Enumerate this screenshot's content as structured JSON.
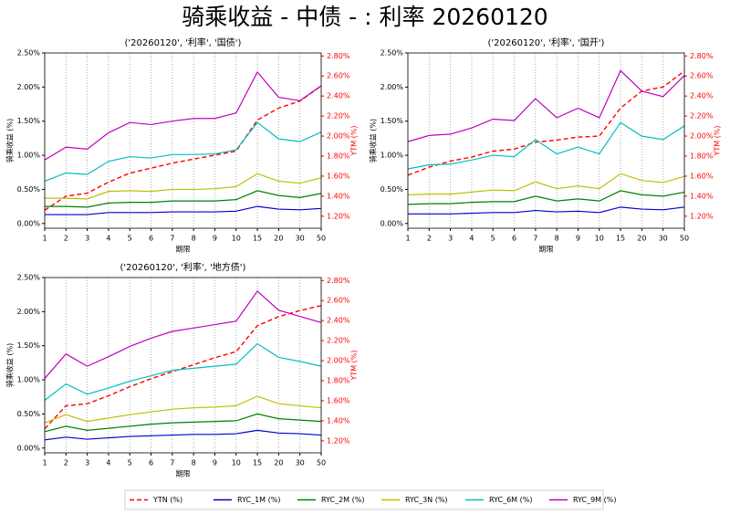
{
  "title": "骑乘收益 - 中债 - : 利率 20260120",
  "chart_data": [
    {
      "type": "line",
      "title": "('20260120', '利率', '国债')",
      "xlabel": "期限",
      "ylabel": "骑乘收益 (%)",
      "y2label": "YTM (%)",
      "categories": [
        "1",
        "2",
        "3",
        "4",
        "5",
        "6",
        "7",
        "8",
        "9",
        "10",
        "15",
        "20",
        "30",
        "50"
      ],
      "xgrid": true,
      "ylim": [
        -0.07,
        2.5
      ],
      "yticks": [
        {
          "value": 0,
          "label": "0.00%"
        },
        {
          "value": 0.5,
          "label": "0.50%"
        },
        {
          "value": 1,
          "label": "1.00%"
        },
        {
          "value": 1.5,
          "label": "1.50%"
        },
        {
          "value": 2,
          "label": "2.00%"
        },
        {
          "value": 2.5,
          "label": "2.50%"
        }
      ],
      "y2lim": [
        1.08,
        2.83
      ],
      "y2ticks": [
        {
          "value": 1.2,
          "label": "1.20%"
        },
        {
          "value": 1.4,
          "label": "1.40%"
        },
        {
          "value": 1.6,
          "label": "1.60%"
        },
        {
          "value": 1.8,
          "label": "1.80%"
        },
        {
          "value": 2,
          "label": "2.00%"
        },
        {
          "value": 2.2,
          "label": "2.20%"
        },
        {
          "value": 2.4,
          "label": "2.40%"
        },
        {
          "value": 2.6,
          "label": "2.60%"
        },
        {
          "value": 2.8,
          "label": "2.80%"
        }
      ],
      "series": [
        {
          "name": "YTN (%)",
          "color": "#ff0000",
          "dashed": true,
          "axis": "y2",
          "values": [
            1.26,
            1.4,
            1.43,
            1.54,
            1.63,
            1.68,
            1.73,
            1.77,
            1.81,
            1.85,
            2.16,
            2.28,
            2.35,
            2.5
          ]
        },
        {
          "name": "RYC_1M (%)",
          "color": "#0000cc",
          "values": [
            0.13,
            0.13,
            0.13,
            0.16,
            0.16,
            0.16,
            0.17,
            0.17,
            0.17,
            0.18,
            0.25,
            0.21,
            0.2,
            0.22
          ]
        },
        {
          "name": "RYC_2M (%)",
          "color": "#008000",
          "values": [
            0.25,
            0.25,
            0.24,
            0.3,
            0.31,
            0.31,
            0.33,
            0.33,
            0.33,
            0.35,
            0.48,
            0.41,
            0.38,
            0.44
          ]
        },
        {
          "name": "RYC_3N (%)",
          "color": "#bfbf00",
          "values": [
            0.37,
            0.37,
            0.36,
            0.47,
            0.48,
            0.47,
            0.5,
            0.5,
            0.51,
            0.54,
            0.73,
            0.62,
            0.59,
            0.67
          ]
        },
        {
          "name": "RYC_6M (%)",
          "color": "#00bfbf",
          "values": [
            0.62,
            0.74,
            0.72,
            0.91,
            0.98,
            0.96,
            1.01,
            1.01,
            1.02,
            1.08,
            1.48,
            1.24,
            1.2,
            1.34
          ]
        },
        {
          "name": "RYC_9M (%)",
          "color": "#bf00bf",
          "values": [
            0.93,
            1.12,
            1.09,
            1.33,
            1.48,
            1.45,
            1.5,
            1.54,
            1.54,
            1.62,
            2.22,
            1.85,
            1.8,
            2.02
          ]
        }
      ]
    },
    {
      "type": "line",
      "title": "('20260120', '利率', '国开')",
      "xlabel": "期限",
      "ylabel": "骑乘收益 (%)",
      "y2label": "YTM (%)",
      "categories": [
        "1",
        "2",
        "3",
        "4",
        "5",
        "6",
        "7",
        "8",
        "9",
        "10",
        "15",
        "20",
        "30",
        "50"
      ],
      "xgrid": true,
      "ylim": [
        -0.07,
        2.5
      ],
      "yticks": [
        {
          "value": 0,
          "label": "0.00%"
        },
        {
          "value": 0.5,
          "label": "0.50%"
        },
        {
          "value": 1,
          "label": "1.00%"
        },
        {
          "value": 1.5,
          "label": "1.50%"
        },
        {
          "value": 2,
          "label": "2.00%"
        },
        {
          "value": 2.5,
          "label": "2.50%"
        }
      ],
      "y2lim": [
        1.08,
        2.83
      ],
      "y2ticks": [
        {
          "value": 1.2,
          "label": "1.20%"
        },
        {
          "value": 1.4,
          "label": "1.40%"
        },
        {
          "value": 1.6,
          "label": "1.60%"
        },
        {
          "value": 1.8,
          "label": "1.80%"
        },
        {
          "value": 2,
          "label": "2.00%"
        },
        {
          "value": 2.2,
          "label": "2.20%"
        },
        {
          "value": 2.4,
          "label": "2.40%"
        },
        {
          "value": 2.6,
          "label": "2.60%"
        },
        {
          "value": 2.8,
          "label": "2.80%"
        }
      ],
      "series": [
        {
          "name": "YTN (%)",
          "color": "#ff0000",
          "dashed": true,
          "axis": "y2",
          "values": [
            1.61,
            1.69,
            1.75,
            1.79,
            1.85,
            1.87,
            1.94,
            1.96,
            1.99,
            2.0,
            2.28,
            2.45,
            2.49,
            2.65
          ]
        },
        {
          "name": "RYC_1M (%)",
          "color": "#0000cc",
          "values": [
            0.14,
            0.14,
            0.14,
            0.15,
            0.16,
            0.16,
            0.19,
            0.17,
            0.18,
            0.16,
            0.24,
            0.21,
            0.2,
            0.24
          ]
        },
        {
          "name": "RYC_2M (%)",
          "color": "#008000",
          "values": [
            0.28,
            0.29,
            0.29,
            0.31,
            0.32,
            0.32,
            0.4,
            0.33,
            0.36,
            0.33,
            0.48,
            0.42,
            0.4,
            0.46
          ]
        },
        {
          "name": "RYC_3N (%)",
          "color": "#bfbf00",
          "values": [
            0.42,
            0.43,
            0.43,
            0.46,
            0.49,
            0.48,
            0.61,
            0.51,
            0.55,
            0.51,
            0.73,
            0.63,
            0.6,
            0.69
          ]
        },
        {
          "name": "RYC_6M (%)",
          "color": "#00bfbf",
          "values": [
            0.8,
            0.86,
            0.87,
            0.93,
            1.0,
            0.98,
            1.23,
            1.02,
            1.12,
            1.02,
            1.48,
            1.28,
            1.23,
            1.43
          ]
        },
        {
          "name": "RYC_9M (%)",
          "color": "#bf00bf",
          "values": [
            1.2,
            1.29,
            1.31,
            1.4,
            1.53,
            1.51,
            1.83,
            1.55,
            1.69,
            1.55,
            2.24,
            1.94,
            1.86,
            2.17
          ]
        }
      ]
    },
    {
      "type": "line",
      "title": "('20260120', '利率', '地方债')",
      "xlabel": "期限",
      "ylabel": "骑乘收益 (%)",
      "y2label": "YTM (%)",
      "categories": [
        "1",
        "2",
        "3",
        "4",
        "5",
        "6",
        "7",
        "8",
        "9",
        "10",
        "15",
        "20",
        "30",
        "50"
      ],
      "xgrid": true,
      "ylim": [
        -0.07,
        2.5
      ],
      "yticks": [
        {
          "value": 0,
          "label": "0.00%"
        },
        {
          "value": 0.5,
          "label": "0.50%"
        },
        {
          "value": 1,
          "label": "1.00%"
        },
        {
          "value": 1.5,
          "label": "1.50%"
        },
        {
          "value": 2,
          "label": "2.00%"
        },
        {
          "value": 2.5,
          "label": "2.50%"
        }
      ],
      "y2lim": [
        1.08,
        2.83
      ],
      "y2ticks": [
        {
          "value": 1.2,
          "label": "1.20%"
        },
        {
          "value": 1.4,
          "label": "1.40%"
        },
        {
          "value": 1.6,
          "label": "1.60%"
        },
        {
          "value": 1.8,
          "label": "1.80%"
        },
        {
          "value": 2,
          "label": "2.00%"
        },
        {
          "value": 2.2,
          "label": "2.20%"
        },
        {
          "value": 2.4,
          "label": "2.40%"
        },
        {
          "value": 2.6,
          "label": "2.60%"
        },
        {
          "value": 2.8,
          "label": "2.80%"
        }
      ],
      "series": [
        {
          "name": "YTN (%)",
          "color": "#ff0000",
          "dashed": true,
          "axis": "y2",
          "values": [
            1.32,
            1.55,
            1.57,
            1.65,
            1.74,
            1.82,
            1.89,
            1.96,
            2.03,
            2.09,
            2.35,
            2.44,
            2.5,
            2.55
          ]
        },
        {
          "name": "RYC_1M (%)",
          "color": "#0000cc",
          "values": [
            0.12,
            0.16,
            0.13,
            0.15,
            0.17,
            0.18,
            0.19,
            0.2,
            0.2,
            0.21,
            0.26,
            0.22,
            0.21,
            0.19
          ]
        },
        {
          "name": "RYC_2M (%)",
          "color": "#008000",
          "values": [
            0.24,
            0.32,
            0.26,
            0.29,
            0.32,
            0.35,
            0.37,
            0.38,
            0.39,
            0.4,
            0.5,
            0.43,
            0.41,
            0.39
          ]
        },
        {
          "name": "RYC_3N (%)",
          "color": "#bfbf00",
          "values": [
            0.37,
            0.49,
            0.39,
            0.44,
            0.49,
            0.53,
            0.57,
            0.59,
            0.6,
            0.62,
            0.76,
            0.65,
            0.62,
            0.59
          ]
        },
        {
          "name": "RYC_6M (%)",
          "color": "#00bfbf",
          "values": [
            0.7,
            0.94,
            0.79,
            0.88,
            0.98,
            1.06,
            1.14,
            1.17,
            1.2,
            1.23,
            1.53,
            1.33,
            1.27,
            1.2
          ]
        },
        {
          "name": "RYC_9M (%)",
          "color": "#bf00bf",
          "values": [
            1.02,
            1.38,
            1.2,
            1.34,
            1.49,
            1.61,
            1.71,
            1.76,
            1.81,
            1.86,
            2.3,
            2.02,
            1.93,
            1.84
          ]
        }
      ]
    }
  ]
}
